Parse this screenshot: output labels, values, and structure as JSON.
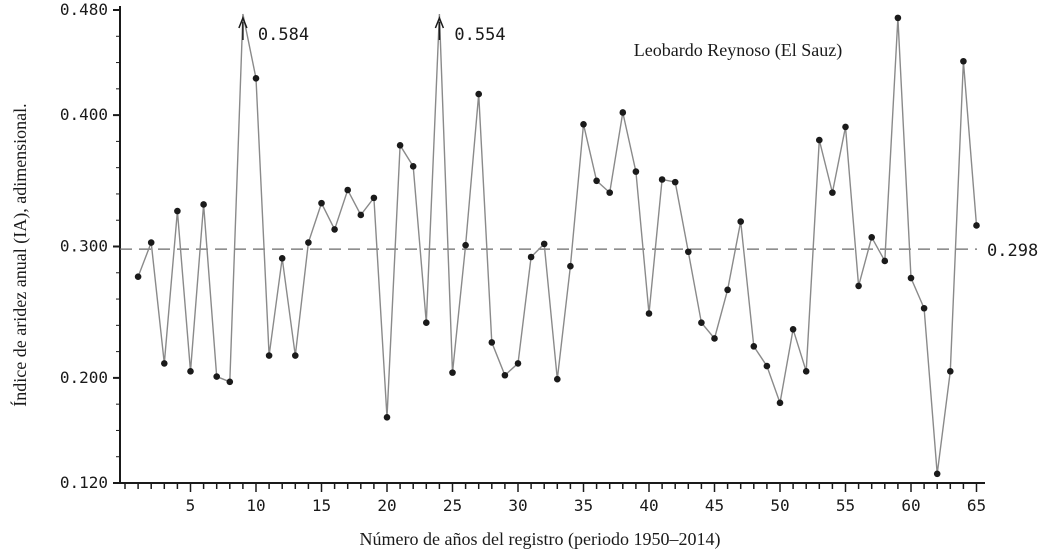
{
  "chart_data": {
    "type": "line",
    "title": "Leobardo Reynoso (El Sauz)",
    "xlabel": "Número de años del registro (periodo 1950–2014)",
    "ylabel": "Índice de aridez anual (IA), adimensional.",
    "xlim": [
      0,
      66
    ],
    "ylim": [
      0.12,
      0.48
    ],
    "x_ticks": [
      5,
      10,
      15,
      20,
      25,
      30,
      35,
      40,
      45,
      50,
      55,
      60,
      65
    ],
    "y_ticks": [
      {
        "value": 0.12,
        "label": "0.120"
      },
      {
        "value": 0.2,
        "label": "0.200"
      },
      {
        "value": 0.3,
        "label": "0.300"
      },
      {
        "value": 0.4,
        "label": "0.400"
      },
      {
        "value": 0.48,
        "label": "0.480"
      }
    ],
    "grid": false,
    "series": [
      {
        "x": [
          1,
          2,
          3,
          4,
          5,
          6,
          7,
          8,
          9,
          10,
          11,
          12,
          13,
          14,
          15,
          16,
          17,
          18,
          19,
          20,
          21,
          22,
          23,
          24,
          25,
          26,
          27,
          28,
          29,
          30,
          31,
          32,
          33,
          34,
          35,
          36,
          37,
          38,
          39,
          40,
          41,
          42,
          43,
          44,
          45,
          46,
          47,
          48,
          49,
          50,
          51,
          52,
          53,
          54,
          55,
          56,
          57,
          58,
          59,
          60,
          61,
          62,
          63,
          64,
          65
        ],
        "values": [
          0.277,
          0.303,
          0.211,
          0.327,
          0.205,
          0.332,
          0.201,
          0.197,
          0.584,
          0.428,
          0.217,
          0.291,
          0.217,
          0.303,
          0.333,
          0.313,
          0.343,
          0.324,
          0.337,
          0.17,
          0.377,
          0.361,
          0.242,
          0.554,
          0.204,
          0.301,
          0.416,
          0.227,
          0.202,
          0.211,
          0.292,
          0.302,
          0.199,
          0.285,
          0.393,
          0.35,
          0.341,
          0.402,
          0.357,
          0.249,
          0.351,
          0.349,
          0.296,
          0.242,
          0.23,
          0.267,
          0.319,
          0.224,
          0.209,
          0.181,
          0.237,
          0.205,
          0.381,
          0.341,
          0.391,
          0.27,
          0.307,
          0.289,
          0.474,
          0.276,
          0.253,
          0.127,
          0.205,
          0.441,
          0.316
        ]
      }
    ],
    "reference_line": {
      "value": 0.298,
      "label": "0.298",
      "style": "dashed"
    },
    "off_scale_annotations": [
      {
        "x": 9,
        "value": 0.584,
        "label": "0.584"
      },
      {
        "x": 24,
        "value": 0.554,
        "label": "0.554"
      }
    ],
    "colors": {
      "line": "#8a8a8a",
      "marker": "#1a1a1a",
      "axis": "#1a1a1a",
      "reference": "#6a6a6a"
    }
  }
}
